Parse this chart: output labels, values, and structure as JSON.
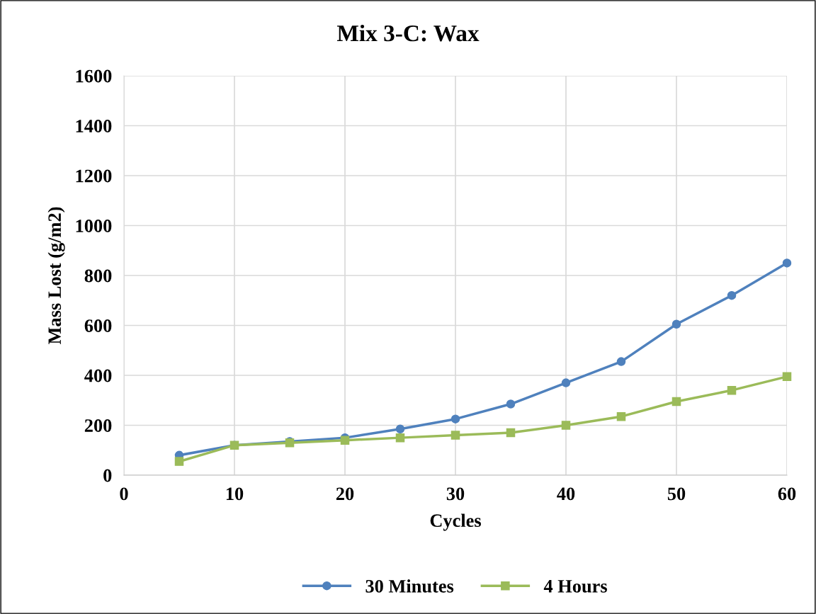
{
  "chart_data": {
    "type": "line",
    "title": "Mix 3-C: Wax",
    "xlabel": "Cycles",
    "ylabel": "Mass Lost (g/m2)",
    "x": [
      5,
      10,
      15,
      20,
      25,
      30,
      35,
      40,
      45,
      50,
      55,
      60
    ],
    "series": [
      {
        "name": "30 Minutes",
        "color": "#4f81bd",
        "marker": "circle",
        "values": [
          80,
          120,
          135,
          150,
          185,
          225,
          285,
          370,
          455,
          605,
          720,
          850
        ]
      },
      {
        "name": "4 Hours",
        "color": "#9bbb59",
        "marker": "square",
        "values": [
          55,
          120,
          130,
          140,
          150,
          160,
          170,
          200,
          235,
          295,
          340,
          395
        ]
      }
    ],
    "xlim": [
      0,
      60
    ],
    "xticks": [
      0,
      10,
      20,
      30,
      40,
      50,
      60
    ],
    "ylim": [
      0,
      1600
    ],
    "yticks": [
      0,
      200,
      400,
      600,
      800,
      1000,
      1200,
      1400,
      1600
    ],
    "grid": true,
    "legend": "bottom",
    "line_style": "solid"
  }
}
